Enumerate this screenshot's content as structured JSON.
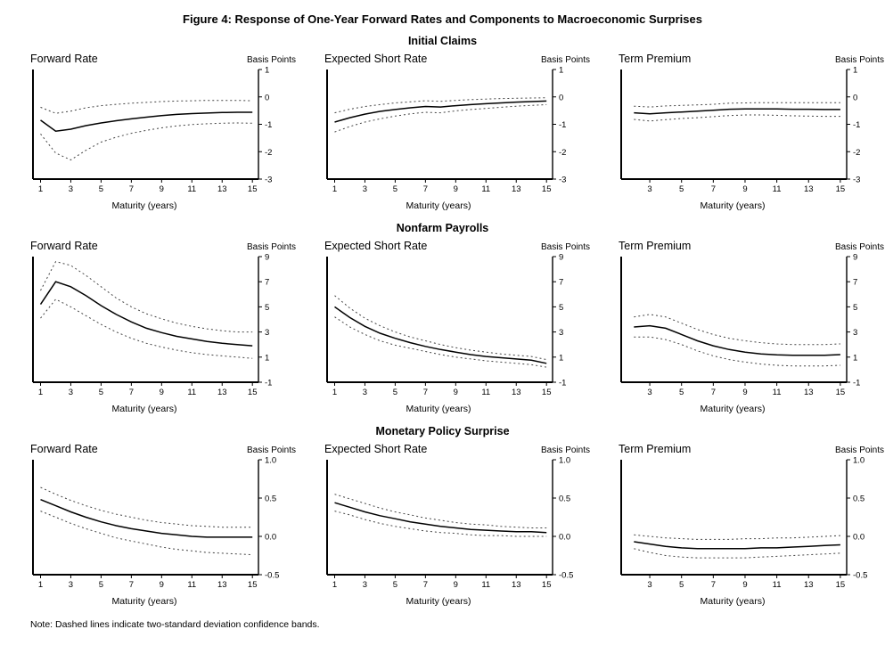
{
  "figure": {
    "title": "Figure 4: Response of One-Year Forward Rates and Components to Macroeconomic Surprises",
    "note": "Note: Dashed lines indicate two-standard deviation confidence bands."
  },
  "sections": [
    "Initial Claims",
    "Nonfarm Payrolls",
    "Monetary Policy Surprise"
  ],
  "chart_data": [
    {
      "type": "line",
      "title": "Forward Rate",
      "y_units": "Basis Points",
      "xlabel": "Maturity (years)",
      "section": "Initial Claims",
      "legend": "none",
      "grid": false,
      "xlim": [
        0.5,
        15.4
      ],
      "xticks": [
        1,
        3,
        5,
        7,
        9,
        11,
        13,
        15
      ],
      "ylim": [
        -3,
        1
      ],
      "yticks": [
        {
          "v": 1,
          "l": "1"
        },
        {
          "v": 0,
          "l": "0"
        },
        {
          "v": -1,
          "l": "-1"
        },
        {
          "v": -2,
          "l": "-2"
        },
        {
          "v": -3,
          "l": "-3"
        }
      ],
      "x": [
        1,
        2,
        3,
        4,
        5,
        6,
        7,
        8,
        9,
        10,
        11,
        12,
        13,
        14,
        15
      ],
      "series": [
        {
          "name": "response",
          "style": "solid",
          "values": [
            -0.85,
            -1.25,
            -1.18,
            -1.05,
            -0.95,
            -0.87,
            -0.8,
            -0.74,
            -0.68,
            -0.64,
            -0.61,
            -0.59,
            -0.57,
            -0.56,
            -0.56
          ]
        },
        {
          "name": "upper confidence band",
          "style": "dashed",
          "values": [
            -0.38,
            -0.6,
            -0.52,
            -0.4,
            -0.32,
            -0.27,
            -0.23,
            -0.2,
            -0.17,
            -0.15,
            -0.14,
            -0.13,
            -0.13,
            -0.13,
            -0.14
          ]
        },
        {
          "name": "lower confidence band",
          "style": "dashed",
          "values": [
            -1.35,
            -2.05,
            -2.3,
            -1.95,
            -1.65,
            -1.47,
            -1.33,
            -1.22,
            -1.13,
            -1.06,
            -1.01,
            -0.98,
            -0.96,
            -0.95,
            -0.96
          ]
        }
      ]
    },
    {
      "type": "line",
      "title": "Expected Short Rate",
      "y_units": "Basis Points",
      "xlabel": "Maturity (years)",
      "section": "Initial Claims",
      "legend": "none",
      "grid": false,
      "xlim": [
        0.5,
        15.4
      ],
      "xticks": [
        1,
        3,
        5,
        7,
        9,
        11,
        13,
        15
      ],
      "ylim": [
        -3,
        1
      ],
      "yticks": [
        {
          "v": 1,
          "l": "1"
        },
        {
          "v": 0,
          "l": "0"
        },
        {
          "v": -1,
          "l": "-1"
        },
        {
          "v": -2,
          "l": "-2"
        },
        {
          "v": -3,
          "l": "-3"
        }
      ],
      "x": [
        1,
        2,
        3,
        4,
        5,
        6,
        7,
        8,
        9,
        10,
        11,
        12,
        13,
        14,
        15
      ],
      "series": [
        {
          "name": "response",
          "style": "solid",
          "values": [
            -0.92,
            -0.76,
            -0.63,
            -0.53,
            -0.46,
            -0.4,
            -0.35,
            -0.37,
            -0.32,
            -0.28,
            -0.25,
            -0.22,
            -0.19,
            -0.17,
            -0.15
          ]
        },
        {
          "name": "upper confidence band",
          "style": "dashed",
          "values": [
            -0.58,
            -0.45,
            -0.35,
            -0.28,
            -0.22,
            -0.18,
            -0.14,
            -0.16,
            -0.13,
            -0.1,
            -0.08,
            -0.06,
            -0.05,
            -0.04,
            -0.03
          ]
        },
        {
          "name": "lower confidence band",
          "style": "dashed",
          "values": [
            -1.28,
            -1.08,
            -0.92,
            -0.8,
            -0.7,
            -0.62,
            -0.56,
            -0.58,
            -0.51,
            -0.46,
            -0.42,
            -0.38,
            -0.34,
            -0.31,
            -0.28
          ]
        }
      ]
    },
    {
      "type": "line",
      "title": "Term Premium",
      "y_units": "Basis Points",
      "xlabel": "Maturity (years)",
      "section": "Initial Claims",
      "legend": "none",
      "grid": false,
      "xlim": [
        1.2,
        15.4
      ],
      "xticks": [
        3,
        5,
        7,
        9,
        11,
        13,
        15
      ],
      "ylim": [
        -3,
        1
      ],
      "yticks": [
        {
          "v": 1,
          "l": "1"
        },
        {
          "v": 0,
          "l": "0"
        },
        {
          "v": -1,
          "l": "-1"
        },
        {
          "v": -2,
          "l": "-2"
        },
        {
          "v": -3,
          "l": "-3"
        }
      ],
      "x": [
        2,
        3,
        4,
        5,
        6,
        7,
        8,
        9,
        10,
        11,
        12,
        13,
        14,
        15
      ],
      "series": [
        {
          "name": "response",
          "style": "solid",
          "values": [
            -0.58,
            -0.62,
            -0.58,
            -0.55,
            -0.52,
            -0.49,
            -0.45,
            -0.44,
            -0.44,
            -0.44,
            -0.45,
            -0.45,
            -0.46,
            -0.46
          ]
        },
        {
          "name": "upper confidence band",
          "style": "dashed",
          "values": [
            -0.34,
            -0.37,
            -0.33,
            -0.31,
            -0.29,
            -0.27,
            -0.23,
            -0.22,
            -0.21,
            -0.21,
            -0.21,
            -0.21,
            -0.21,
            -0.21
          ]
        },
        {
          "name": "lower confidence band",
          "style": "dashed",
          "values": [
            -0.82,
            -0.88,
            -0.83,
            -0.79,
            -0.76,
            -0.72,
            -0.68,
            -0.66,
            -0.66,
            -0.67,
            -0.69,
            -0.7,
            -0.71,
            -0.71
          ]
        }
      ]
    },
    {
      "type": "line",
      "title": "Forward Rate",
      "y_units": "Basis Points",
      "xlabel": "Maturity (years)",
      "section": "Nonfarm Payrolls",
      "legend": "none",
      "grid": false,
      "xlim": [
        0.5,
        15.4
      ],
      "xticks": [
        1,
        3,
        5,
        7,
        9,
        11,
        13,
        15
      ],
      "ylim": [
        -1,
        9
      ],
      "yticks": [
        {
          "v": 9,
          "l": "9"
        },
        {
          "v": 7,
          "l": "7"
        },
        {
          "v": 5,
          "l": "5"
        },
        {
          "v": 3,
          "l": "3"
        },
        {
          "v": 1,
          "l": "1"
        },
        {
          "v": -1,
          "l": "-1"
        }
      ],
      "x": [
        1,
        2,
        3,
        4,
        5,
        6,
        7,
        8,
        9,
        10,
        11,
        12,
        13,
        14,
        15
      ],
      "series": [
        {
          "name": "response",
          "style": "solid",
          "values": [
            5.2,
            7.0,
            6.6,
            5.9,
            5.1,
            4.4,
            3.8,
            3.3,
            2.95,
            2.65,
            2.45,
            2.25,
            2.1,
            2.0,
            1.9
          ]
        },
        {
          "name": "upper confidence band",
          "style": "dashed",
          "values": [
            6.3,
            8.6,
            8.3,
            7.5,
            6.6,
            5.7,
            5.0,
            4.45,
            4.05,
            3.7,
            3.45,
            3.25,
            3.1,
            3.0,
            3.0
          ]
        },
        {
          "name": "lower confidence band",
          "style": "dashed",
          "values": [
            4.1,
            5.6,
            5.0,
            4.3,
            3.6,
            3.0,
            2.5,
            2.1,
            1.8,
            1.55,
            1.35,
            1.2,
            1.1,
            1.0,
            0.9
          ]
        }
      ]
    },
    {
      "type": "line",
      "title": "Expected Short Rate",
      "y_units": "Basis Points",
      "xlabel": "Maturity (years)",
      "section": "Nonfarm Payrolls",
      "legend": "none",
      "grid": false,
      "xlim": [
        0.5,
        15.4
      ],
      "xticks": [
        1,
        3,
        5,
        7,
        9,
        11,
        13,
        15
      ],
      "ylim": [
        -1,
        9
      ],
      "yticks": [
        {
          "v": 9,
          "l": "9"
        },
        {
          "v": 7,
          "l": "7"
        },
        {
          "v": 5,
          "l": "5"
        },
        {
          "v": 3,
          "l": "3"
        },
        {
          "v": 1,
          "l": "1"
        },
        {
          "v": -1,
          "l": "-1"
        }
      ],
      "x": [
        1,
        2,
        3,
        4,
        5,
        6,
        7,
        8,
        9,
        10,
        11,
        12,
        13,
        14,
        15
      ],
      "series": [
        {
          "name": "response",
          "style": "solid",
          "values": [
            5.0,
            4.15,
            3.45,
            2.9,
            2.5,
            2.15,
            1.85,
            1.6,
            1.4,
            1.2,
            1.05,
            0.95,
            0.85,
            0.75,
            0.5
          ]
        },
        {
          "name": "upper confidence band",
          "style": "dashed",
          "values": [
            5.9,
            4.9,
            4.1,
            3.5,
            3.0,
            2.6,
            2.3,
            2.0,
            1.75,
            1.55,
            1.4,
            1.25,
            1.15,
            1.05,
            0.8
          ]
        },
        {
          "name": "lower confidence band",
          "style": "dashed",
          "values": [
            4.2,
            3.4,
            2.8,
            2.3,
            1.95,
            1.7,
            1.45,
            1.2,
            1.0,
            0.85,
            0.7,
            0.6,
            0.5,
            0.4,
            0.2
          ]
        }
      ]
    },
    {
      "type": "line",
      "title": "Term Premium",
      "y_units": "Basis Points",
      "xlabel": "Maturity (years)",
      "section": "Nonfarm Payrolls",
      "legend": "none",
      "grid": false,
      "xlim": [
        1.2,
        15.4
      ],
      "xticks": [
        3,
        5,
        7,
        9,
        11,
        13,
        15
      ],
      "ylim": [
        -1,
        9
      ],
      "yticks": [
        {
          "v": 9,
          "l": "9"
        },
        {
          "v": 7,
          "l": "7"
        },
        {
          "v": 5,
          "l": "5"
        },
        {
          "v": 3,
          "l": "3"
        },
        {
          "v": 1,
          "l": "1"
        },
        {
          "v": -1,
          "l": "-1"
        }
      ],
      "x": [
        2,
        3,
        4,
        5,
        6,
        7,
        8,
        9,
        10,
        11,
        12,
        13,
        14,
        15
      ],
      "series": [
        {
          "name": "response",
          "style": "solid",
          "values": [
            3.4,
            3.5,
            3.3,
            2.8,
            2.3,
            1.9,
            1.6,
            1.4,
            1.25,
            1.18,
            1.15,
            1.15,
            1.15,
            1.2
          ]
        },
        {
          "name": "upper confidence band",
          "style": "dashed",
          "values": [
            4.2,
            4.4,
            4.2,
            3.7,
            3.2,
            2.8,
            2.5,
            2.3,
            2.15,
            2.05,
            2.0,
            2.0,
            2.0,
            2.05
          ]
        },
        {
          "name": "lower confidence band",
          "style": "dashed",
          "values": [
            2.6,
            2.6,
            2.4,
            2.0,
            1.5,
            1.1,
            0.8,
            0.6,
            0.45,
            0.35,
            0.3,
            0.3,
            0.3,
            0.35
          ]
        }
      ]
    },
    {
      "type": "line",
      "title": "Forward Rate",
      "y_units": "Basis Points",
      "xlabel": "Maturity (years)",
      "section": "Monetary Policy Surprise",
      "legend": "none",
      "grid": false,
      "xlim": [
        0.5,
        15.4
      ],
      "xticks": [
        1,
        3,
        5,
        7,
        9,
        11,
        13,
        15
      ],
      "ylim": [
        -0.5,
        1.0
      ],
      "yticks": [
        {
          "v": 1.0,
          "l": "1.0"
        },
        {
          "v": 0.5,
          "l": "0.5"
        },
        {
          "v": 0.0,
          "l": "0.0"
        },
        {
          "v": -0.5,
          "l": "-0.5"
        }
      ],
      "x": [
        1,
        2,
        3,
        4,
        5,
        6,
        7,
        8,
        9,
        10,
        11,
        12,
        13,
        14,
        15
      ],
      "series": [
        {
          "name": "response",
          "style": "solid",
          "values": [
            0.48,
            0.4,
            0.32,
            0.25,
            0.19,
            0.14,
            0.1,
            0.07,
            0.04,
            0.02,
            0.0,
            -0.01,
            -0.01,
            -0.01,
            -0.01
          ]
        },
        {
          "name": "upper confidence band",
          "style": "dashed",
          "values": [
            0.64,
            0.55,
            0.47,
            0.4,
            0.34,
            0.29,
            0.25,
            0.21,
            0.18,
            0.16,
            0.14,
            0.13,
            0.12,
            0.12,
            0.12
          ]
        },
        {
          "name": "lower confidence band",
          "style": "dashed",
          "values": [
            0.33,
            0.25,
            0.17,
            0.1,
            0.04,
            -0.02,
            -0.06,
            -0.1,
            -0.14,
            -0.17,
            -0.19,
            -0.21,
            -0.22,
            -0.23,
            -0.24
          ]
        }
      ]
    },
    {
      "type": "line",
      "title": "Expected Short Rate",
      "y_units": "Basis Points",
      "xlabel": "Maturity (years)",
      "section": "Monetary Policy Surprise",
      "legend": "none",
      "grid": false,
      "xlim": [
        0.5,
        15.4
      ],
      "xticks": [
        1,
        3,
        5,
        7,
        9,
        11,
        13,
        15
      ],
      "ylim": [
        -0.5,
        1.0
      ],
      "yticks": [
        {
          "v": 1.0,
          "l": "1.0"
        },
        {
          "v": 0.5,
          "l": "0.5"
        },
        {
          "v": 0.0,
          "l": "0.0"
        },
        {
          "v": -0.5,
          "l": "-0.5"
        }
      ],
      "x": [
        1,
        2,
        3,
        4,
        5,
        6,
        7,
        8,
        9,
        10,
        11,
        12,
        13,
        14,
        15
      ],
      "series": [
        {
          "name": "response",
          "style": "solid",
          "values": [
            0.44,
            0.38,
            0.32,
            0.27,
            0.23,
            0.19,
            0.16,
            0.13,
            0.11,
            0.09,
            0.08,
            0.07,
            0.06,
            0.06,
            0.05
          ]
        },
        {
          "name": "upper confidence band",
          "style": "dashed",
          "values": [
            0.55,
            0.49,
            0.43,
            0.37,
            0.32,
            0.28,
            0.24,
            0.21,
            0.18,
            0.16,
            0.15,
            0.13,
            0.12,
            0.11,
            0.11
          ]
        },
        {
          "name": "lower confidence band",
          "style": "dashed",
          "values": [
            0.33,
            0.28,
            0.22,
            0.17,
            0.13,
            0.1,
            0.07,
            0.05,
            0.04,
            0.02,
            0.01,
            0.01,
            0.0,
            0.0,
            0.0
          ]
        }
      ]
    },
    {
      "type": "line",
      "title": "Term Premium",
      "y_units": "Basis Points",
      "xlabel": "Maturity (years)",
      "section": "Monetary Policy Surprise",
      "legend": "none",
      "grid": false,
      "xlim": [
        1.2,
        15.4
      ],
      "xticks": [
        3,
        5,
        7,
        9,
        11,
        13,
        15
      ],
      "ylim": [
        -0.5,
        1.0
      ],
      "yticks": [
        {
          "v": 1.0,
          "l": "1.0"
        },
        {
          "v": 0.5,
          "l": "0.5"
        },
        {
          "v": 0.0,
          "l": "0.0"
        },
        {
          "v": -0.5,
          "l": "-0.5"
        }
      ],
      "x": [
        2,
        3,
        4,
        5,
        6,
        7,
        8,
        9,
        10,
        11,
        12,
        13,
        14,
        15
      ],
      "series": [
        {
          "name": "response",
          "style": "solid",
          "values": [
            -0.07,
            -0.1,
            -0.13,
            -0.15,
            -0.16,
            -0.16,
            -0.16,
            -0.16,
            -0.15,
            -0.15,
            -0.14,
            -0.13,
            -0.12,
            -0.11
          ]
        },
        {
          "name": "upper confidence band",
          "style": "dashed",
          "values": [
            0.02,
            0.0,
            -0.02,
            -0.03,
            -0.04,
            -0.04,
            -0.04,
            -0.03,
            -0.03,
            -0.02,
            -0.02,
            -0.01,
            0.0,
            0.01
          ]
        },
        {
          "name": "lower confidence band",
          "style": "dashed",
          "values": [
            -0.16,
            -0.21,
            -0.25,
            -0.27,
            -0.28,
            -0.28,
            -0.28,
            -0.28,
            -0.27,
            -0.26,
            -0.25,
            -0.24,
            -0.23,
            -0.22
          ]
        }
      ]
    }
  ]
}
